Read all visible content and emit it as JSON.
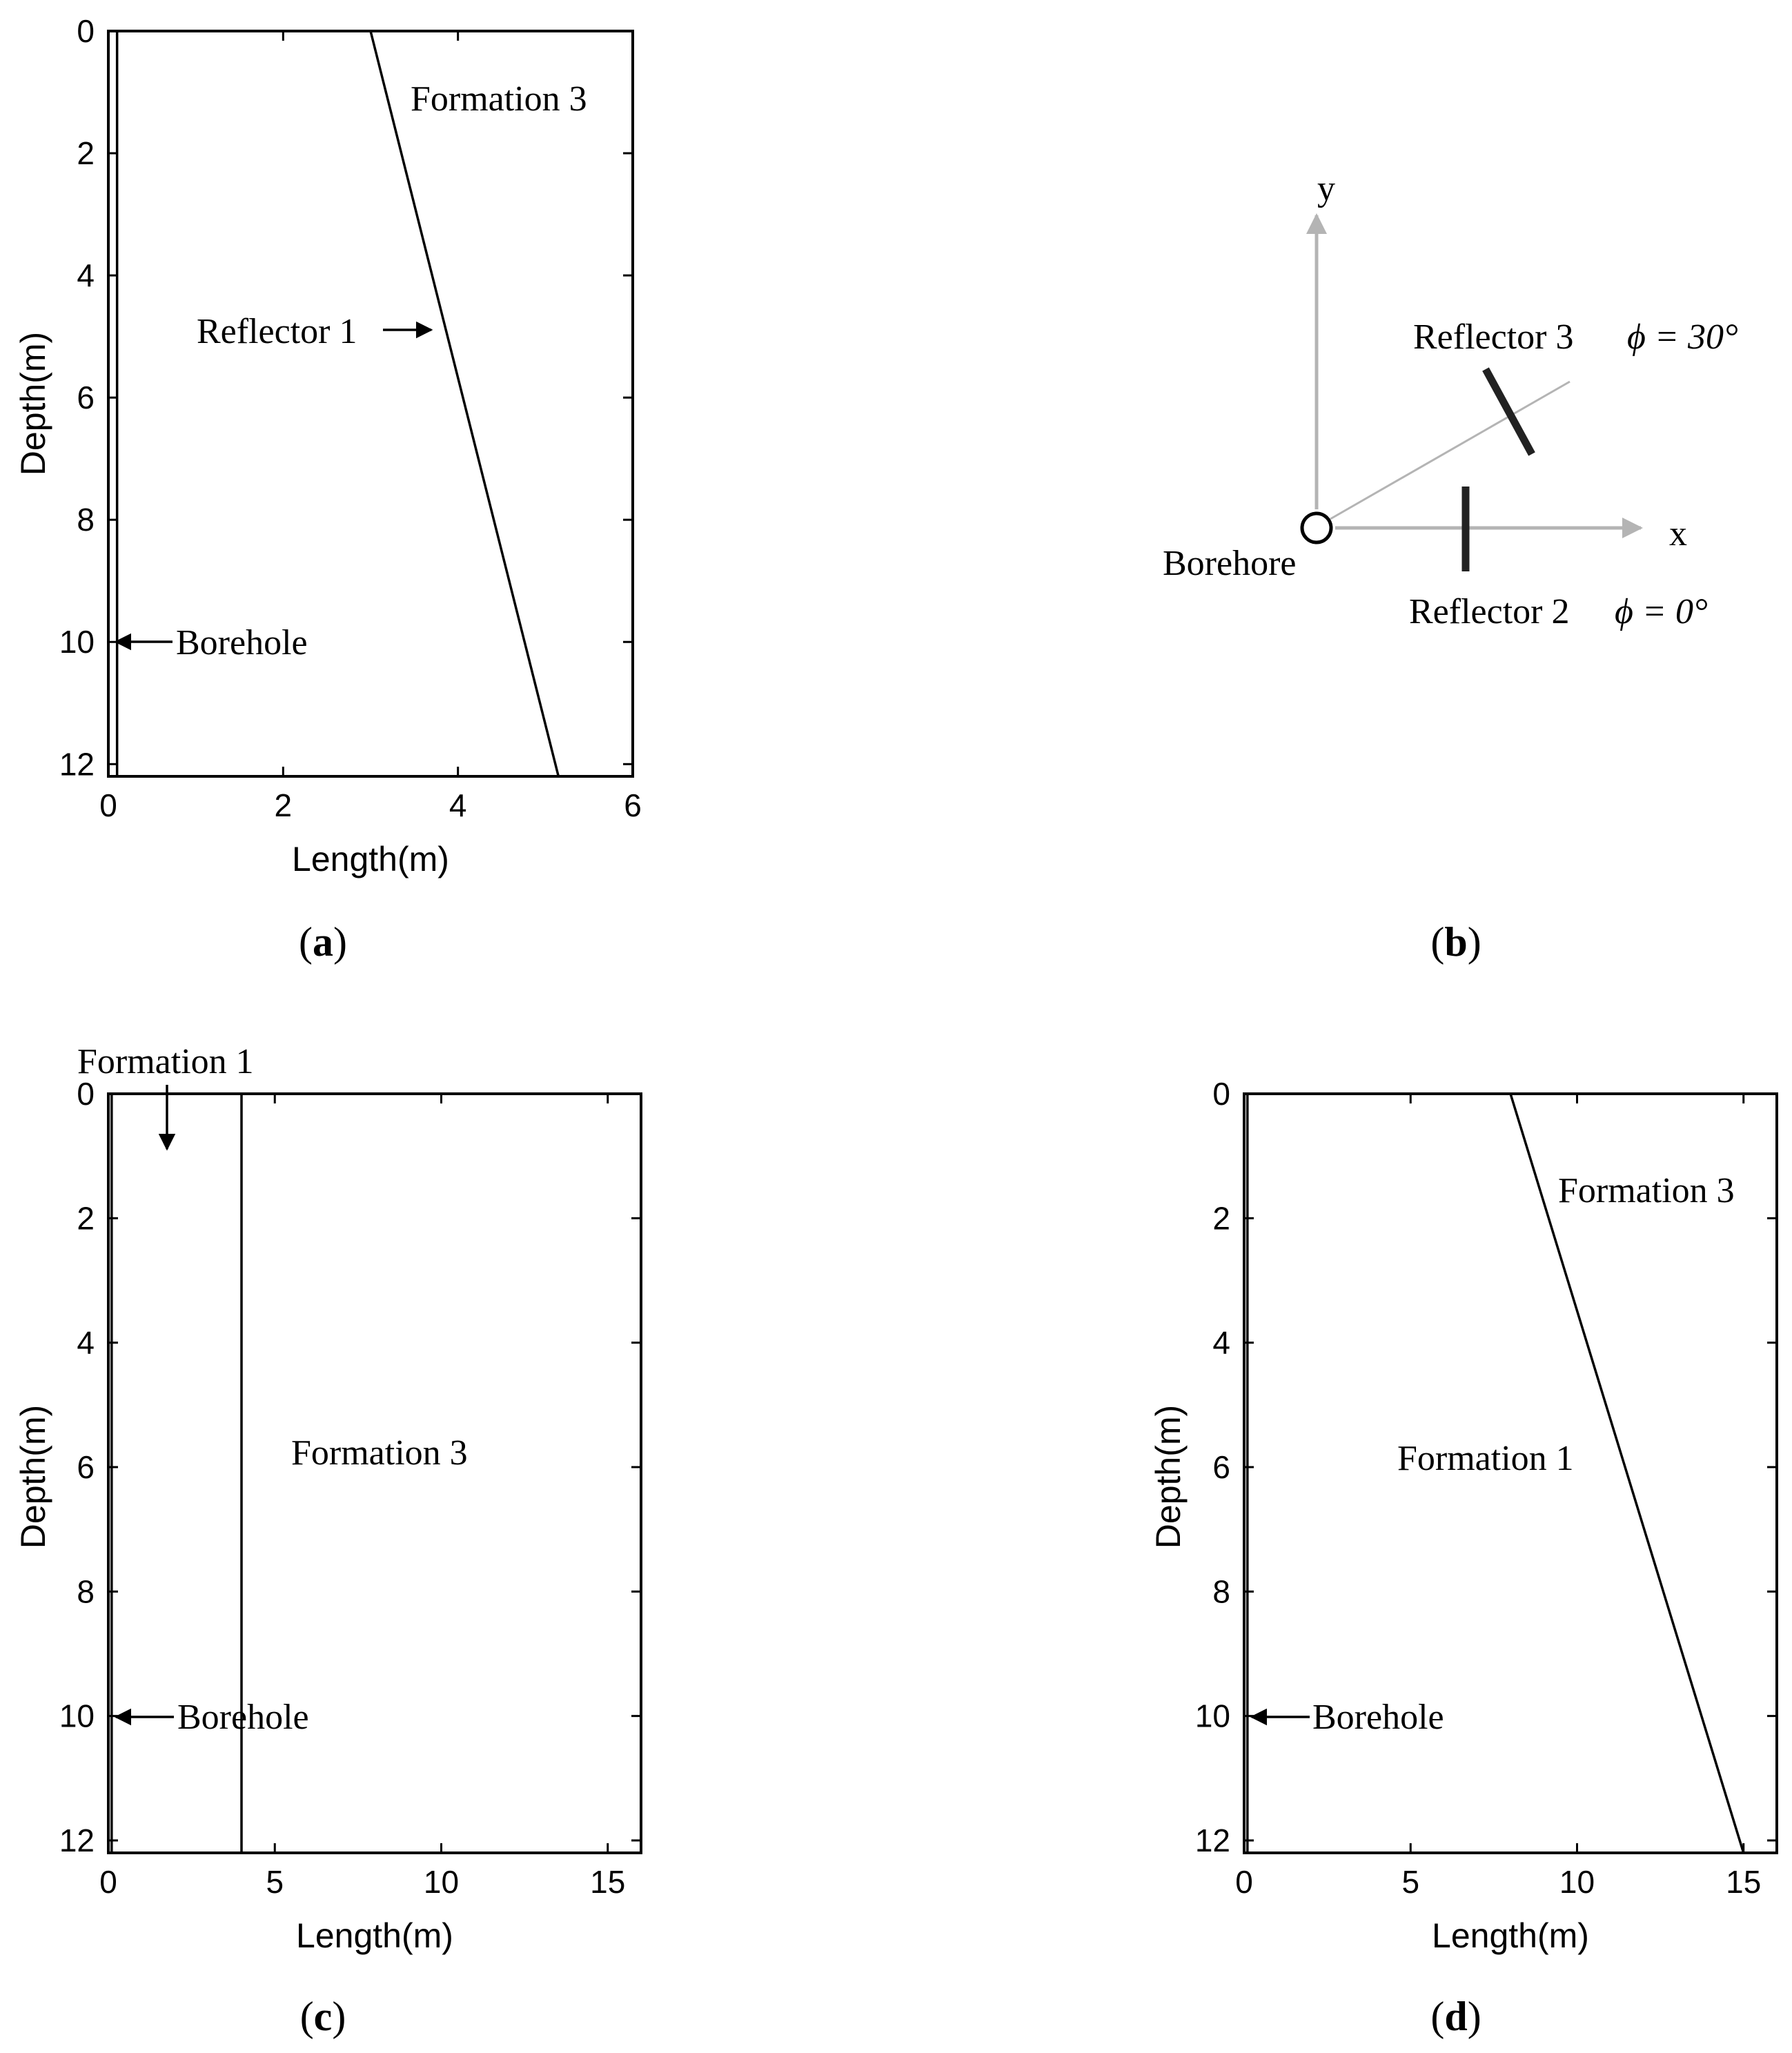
{
  "panels": {
    "a": {
      "caption": "a",
      "xlabel": "Length(m)",
      "ylabel": "Depth(m)",
      "xlim": [
        0,
        6
      ],
      "ylim": [
        0,
        12.2
      ],
      "xticks": [
        "0",
        "2",
        "4",
        "6"
      ],
      "yticks": [
        "0",
        "2",
        "4",
        "6",
        "8",
        "10",
        "12"
      ],
      "boundary": {
        "x0": 3.0,
        "x1": 5.15
      },
      "borehole_x": 0.1,
      "labels": {
        "formation": "Formation 3",
        "reflector": "Reflector 1",
        "borehole": "Borehole"
      }
    },
    "b": {
      "caption": "b",
      "axis_x": "x",
      "axis_y": "y",
      "borehole": "Borehore",
      "reflector3": "Reflector 3",
      "phi3": "ϕ = 30°",
      "reflector2": "Reflector 2",
      "phi2": "ϕ = 0°"
    },
    "c": {
      "caption": "c",
      "xlabel": "Length(m)",
      "ylabel": "Depth(m)",
      "xlim": [
        0,
        16
      ],
      "ylim": [
        0,
        12.2
      ],
      "xticks": [
        "0",
        "5",
        "10",
        "15"
      ],
      "yticks": [
        "0",
        "2",
        "4",
        "6",
        "8",
        "10",
        "12"
      ],
      "boundary": {
        "x0": 4.0,
        "x1": 4.0
      },
      "borehole_x": 0.1,
      "labels": {
        "formation1": "Formation 1",
        "formation3": "Formation 3",
        "borehole": "Borehole"
      }
    },
    "d": {
      "caption": "d",
      "xlabel": "Length(m)",
      "ylabel": "Depth(m)",
      "xlim": [
        0,
        16
      ],
      "ylim": [
        0,
        12.2
      ],
      "xticks": [
        "0",
        "5",
        "10",
        "15"
      ],
      "yticks": [
        "0",
        "2",
        "4",
        "6",
        "8",
        "10",
        "12"
      ],
      "boundary": {
        "x0": 8.0,
        "x1": 15.0
      },
      "borehole_x": 0.1,
      "labels": {
        "formation3": "Formation 3",
        "formation1": "Formation 1",
        "borehole": "Borehole"
      }
    }
  }
}
